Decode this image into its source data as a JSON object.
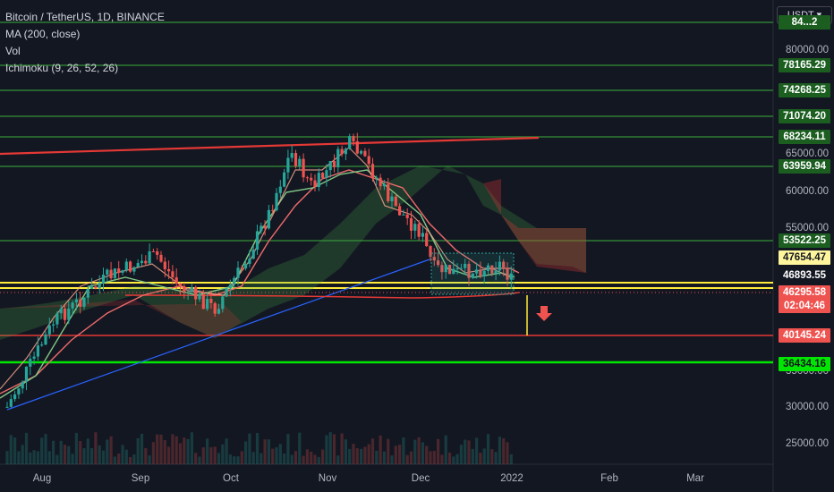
{
  "legend": {
    "symbol": "Bitcoin / TetherUS, 1D, BINANCE",
    "ma": "MA (200, close)",
    "vol": "Vol",
    "ichimoku": "Ichimoku (9, 26, 52, 26)"
  },
  "currency_button": "USDT ▾",
  "y_axis_ticks": [
    "80000.00",
    "65000.00",
    "60000.00",
    "55000.00",
    "35000.00",
    "30000.00",
    "25000.00"
  ],
  "x_axis_ticks": [
    "Aug",
    "Sep",
    "Oct",
    "Nov",
    "Dec",
    "2022",
    "Feb",
    "Mar"
  ],
  "price_tags": [
    {
      "label": "84...2",
      "bg": "#1b5e20",
      "fg": "#ffffff"
    },
    {
      "label": "78165.29",
      "bg": "#1b5e20",
      "fg": "#ffffff"
    },
    {
      "label": "74268.25",
      "bg": "#1b5e20",
      "fg": "#ffffff"
    },
    {
      "label": "71074.20",
      "bg": "#1b5e20",
      "fg": "#ffffff"
    },
    {
      "label": "68234.11",
      "bg": "#1b5e20",
      "fg": "#ffffff"
    },
    {
      "label": "63959.94",
      "bg": "#1b5e20",
      "fg": "#ffffff"
    },
    {
      "label": "53522.25",
      "bg": "#1b5e20",
      "fg": "#ffffff"
    },
    {
      "label": "47654.47",
      "bg": "#fff59d",
      "fg": "#131722"
    },
    {
      "label": "46893.55",
      "bg": "#131722",
      "fg": "#ffffff"
    },
    {
      "label": "46295.58",
      "bg": "#ef5350",
      "fg": "#ffffff"
    },
    {
      "label": "02:04:46",
      "bg": "#ef5350",
      "fg": "#ffffff"
    },
    {
      "label": "40145.24",
      "bg": "#ef5350",
      "fg": "#ffffff"
    },
    {
      "label": "36434.16",
      "bg": "#00e600",
      "fg": "#131722"
    }
  ],
  "colors": {
    "background": "#131722",
    "green_line": "#2e7d32",
    "bright_green": "#00e600",
    "red_line": "#e53935",
    "yellow_line": "#ffeb3b",
    "blue_line": "#2962ff",
    "candle_up": "#26a69a",
    "candle_down": "#ef5350"
  }
}
